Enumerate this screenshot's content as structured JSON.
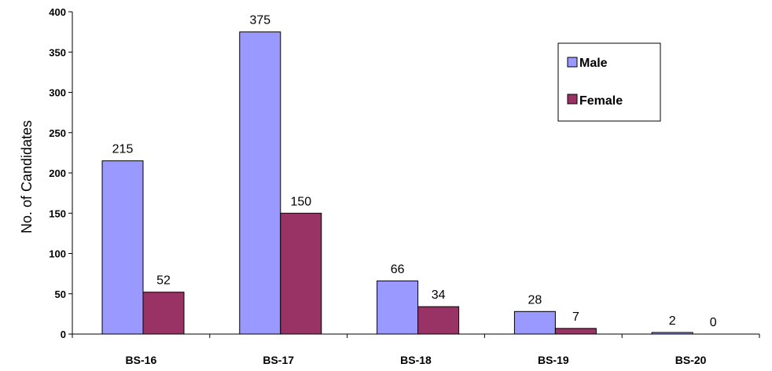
{
  "chart_data": {
    "type": "bar",
    "xlabel": "",
    "ylabel": "No. of Candidates",
    "ylim": [
      0,
      400
    ],
    "y_ticks": [
      0,
      50,
      100,
      150,
      200,
      250,
      300,
      350,
      400
    ],
    "grid": false,
    "legend_position": "top-right",
    "categories": [
      "BS-16",
      "BS-17",
      "BS-18",
      "BS-19",
      "BS-20"
    ],
    "series": [
      {
        "name": "Male",
        "values": [
          215,
          375,
          66,
          28,
          2
        ],
        "color": "#9999ff"
      },
      {
        "name": "Female",
        "values": [
          52,
          150,
          34,
          7,
          0
        ],
        "color": "#993366"
      }
    ]
  }
}
